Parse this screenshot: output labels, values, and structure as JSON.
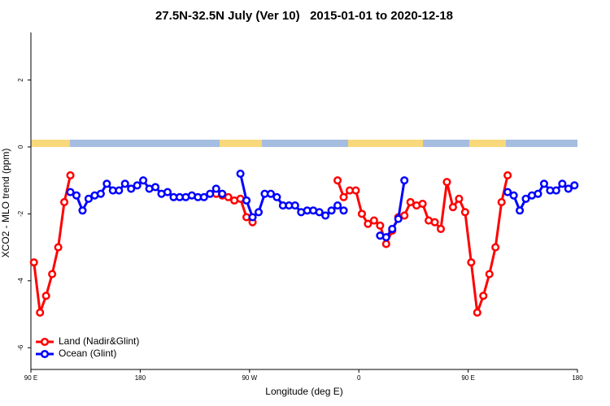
{
  "chart_data": {
    "type": "line",
    "title": "27.5N-32.5N July (Ver 10)   2015-01-01 to 2020-12-18",
    "x_label": "Longitude (deg E)",
    "y_label": "XCO2 - MLO trend (ppm)",
    "x": [
      92.5,
      97.5,
      102.5,
      107.5,
      112.5,
      117.5,
      122.5,
      127.5,
      132.5,
      137.5,
      142.5,
      147.5,
      152.5,
      157.5,
      162.5,
      167.5,
      172.5,
      177.5,
      182.5,
      187.5,
      192.5,
      197.5,
      202.5,
      207.5,
      212.5,
      217.5,
      222.5,
      227.5,
      232.5,
      237.5,
      242.5,
      247.5,
      252.5,
      257.5,
      262.5,
      267.5,
      272.5,
      277.5,
      282.5,
      287.5,
      292.5,
      297.5,
      302.5,
      307.5,
      312.5,
      317.5,
      322.5,
      327.5,
      332.5,
      337.5,
      342.5,
      347.5,
      352.5,
      357.5,
      362.5,
      367.5,
      372.5,
      377.5,
      382.5,
      387.5,
      392.5,
      397.5,
      402.5,
      407.5,
      412.5,
      417.5,
      422.5,
      427.5,
      432.5,
      437.5,
      442.5,
      447.5,
      452.5,
      457.5,
      462.5,
      467.5,
      472.5,
      477.5,
      482.5,
      487.5,
      492.5,
      497.5,
      502.5,
      507.5,
      512.5,
      517.5,
      522.5,
      527.5,
      532.5,
      537.5
    ],
    "series": [
      {
        "name": "Land (Nadir&Glint)",
        "color": "#ff0000",
        "values": [
          -3.45,
          -4.95,
          -4.45,
          -3.8,
          -3.0,
          -1.65,
          -0.85,
          null,
          null,
          null,
          null,
          null,
          null,
          null,
          null,
          null,
          null,
          null,
          null,
          null,
          null,
          null,
          null,
          null,
          null,
          null,
          null,
          null,
          null,
          null,
          -1.4,
          -1.45,
          -1.5,
          -1.6,
          -1.55,
          -2.1,
          -2.25,
          null,
          null,
          null,
          null,
          null,
          null,
          null,
          null,
          null,
          null,
          null,
          null,
          null,
          -1.0,
          -1.5,
          -1.3,
          -1.3,
          -2.0,
          -2.3,
          -2.2,
          -2.35,
          -2.9,
          -2.5,
          -2.1,
          -2.05,
          -1.65,
          -1.75,
          -1.7,
          -2.2,
          -2.25,
          -2.45,
          -1.05,
          -1.8,
          -1.55,
          -1.95,
          -3.45,
          -4.95,
          -4.45,
          -3.8,
          -3.0,
          -1.65,
          -0.85,
          null,
          null,
          null,
          null,
          null,
          null,
          null,
          null,
          null,
          null,
          null
        ]
      },
      {
        "name": "Ocean (Glint)",
        "color": "#0000ff",
        "values": [
          null,
          null,
          null,
          null,
          null,
          null,
          -1.35,
          -1.45,
          -1.9,
          -1.55,
          -1.45,
          -1.4,
          -1.1,
          -1.3,
          -1.3,
          -1.1,
          -1.25,
          -1.15,
          -1.0,
          -1.25,
          -1.2,
          -1.4,
          -1.35,
          -1.5,
          -1.5,
          -1.5,
          -1.45,
          -1.5,
          -1.5,
          -1.4,
          -1.25,
          -1.4,
          null,
          null,
          -0.8,
          -1.6,
          -2.1,
          -1.95,
          -1.4,
          -1.4,
          -1.5,
          -1.75,
          -1.75,
          -1.75,
          -1.95,
          -1.9,
          -1.9,
          -1.95,
          -2.05,
          -1.9,
          -1.75,
          -1.9,
          null,
          null,
          null,
          null,
          null,
          -2.65,
          -2.7,
          -2.45,
          -2.15,
          -1.0,
          null,
          null,
          null,
          null,
          null,
          null,
          null,
          null,
          null,
          null,
          null,
          null,
          null,
          null,
          null,
          null,
          -1.35,
          -1.45,
          -1.9,
          -1.55,
          -1.45,
          -1.4,
          -1.1,
          -1.3,
          -1.3,
          -1.1,
          -1.25,
          -1.15
        ]
      }
    ],
    "xlim": [
      90,
      540
    ],
    "xticks": [
      {
        "value": 90,
        "label": "90 E"
      },
      180,
      {
        "value": 270,
        "label": "90 W"
      },
      {
        "value": 360,
        "label": "0"
      },
      {
        "value": 450,
        "label": "90 E"
      },
      {
        "value": 540,
        "label": "180"
      }
    ],
    "ylim": [
      -6.65,
      3.42
    ],
    "yticks": [
      -6,
      -4,
      -2,
      0,
      2
    ],
    "legend": "bottom-left"
  }
}
